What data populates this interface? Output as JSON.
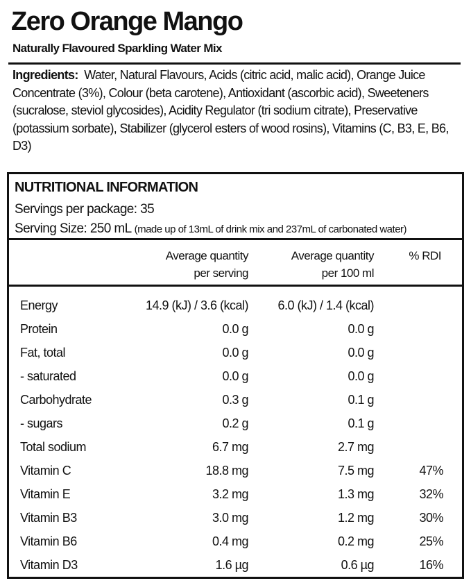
{
  "title": "Zero Orange Mango",
  "subtitle": "Naturally Flavoured Sparkling Water Mix",
  "ingredients": {
    "label": "Ingredients:",
    "text": "Water, Natural Flavours, Acids (citric acid, malic acid), Orange Juice Concentrate (3%), Colour (beta carotene), Antioxidant (ascorbic acid), Sweeteners (sucralose, steviol glycosides), Acidity Regulator (tri sodium citrate), Preservative (potassium sorbate), Stabilizer (glycerol esters of wood rosins), Vitamins (C, B3, E, B6, D3)"
  },
  "nutrition": {
    "heading": "NUTRITIONAL INFORMATION",
    "servings": "Servings per package: 35",
    "serving_size": "Serving Size: 250 mL",
    "serving_note": "(made up of 13mL of drink mix and 237mL of carbonated water)",
    "columns": {
      "per_serving_1": "Average quantity",
      "per_serving_2": "per serving",
      "per_100_1": "Average quantity",
      "per_100_2": "per 100 ml",
      "rdi": "% RDI"
    },
    "rows": [
      {
        "name": "Energy",
        "serving": "14.9 (kJ) / 3.6 (kcal)",
        "per100": "6.0 (kJ) / 1.4 (kcal)",
        "rdi": ""
      },
      {
        "name": "Protein",
        "serving": "0.0 g",
        "per100": "0.0 g",
        "rdi": ""
      },
      {
        "name": "Fat, total",
        "serving": "0.0 g",
        "per100": "0.0 g",
        "rdi": ""
      },
      {
        "name": "- saturated",
        "serving": "0.0 g",
        "per100": "0.0 g",
        "rdi": ""
      },
      {
        "name": "Carbohydrate",
        "serving": "0.3 g",
        "per100": "0.1 g",
        "rdi": ""
      },
      {
        "name": "- sugars",
        "serving": "0.2 g",
        "per100": "0.1 g",
        "rdi": ""
      },
      {
        "name": "Total sodium",
        "serving": "6.7 mg",
        "per100": "2.7 mg",
        "rdi": ""
      },
      {
        "name": "Vitamin C",
        "serving": "18.8 mg",
        "per100": "7.5 mg",
        "rdi": "47%"
      },
      {
        "name": "Vitamin E",
        "serving": "3.2 mg",
        "per100": "1.3 mg",
        "rdi": "32%"
      },
      {
        "name": "Vitamin B3",
        "serving": "3.0 mg",
        "per100": "1.2 mg",
        "rdi": "30%"
      },
      {
        "name": "Vitamin B6",
        "serving": "0.4 mg",
        "per100": "0.2 mg",
        "rdi": "25%"
      },
      {
        "name": "Vitamin D3",
        "serving": "1.6 µg",
        "per100": "0.6 µg",
        "rdi": "16%"
      }
    ]
  }
}
